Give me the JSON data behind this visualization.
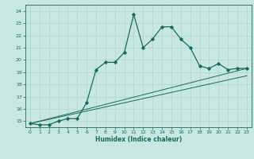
{
  "xlabel": "Humidex (Indice chaleur)",
  "ylabel": "",
  "xlim": [
    -0.5,
    23.5
  ],
  "ylim": [
    14.5,
    24.5
  ],
  "xticks": [
    0,
    1,
    2,
    3,
    4,
    5,
    6,
    7,
    8,
    9,
    10,
    11,
    12,
    13,
    14,
    15,
    16,
    17,
    18,
    19,
    20,
    21,
    22,
    23
  ],
  "yticks": [
    15,
    16,
    17,
    18,
    19,
    20,
    21,
    22,
    23,
    24
  ],
  "bg_color": "#c8e6e6",
  "grid_color": "#aad4d4",
  "line_color": "#1a6b5a",
  "main_x": [
    0,
    1,
    2,
    3,
    4,
    5,
    6,
    7,
    8,
    9,
    10,
    11,
    12,
    13,
    14,
    15,
    16,
    17,
    18,
    19,
    20,
    21,
    22,
    23
  ],
  "main_y": [
    14.8,
    14.7,
    14.7,
    15.0,
    15.2,
    15.2,
    16.5,
    19.2,
    19.8,
    19.8,
    20.6,
    23.7,
    21.0,
    21.7,
    22.7,
    22.7,
    21.7,
    21.0,
    19.5,
    19.3,
    19.7,
    19.2,
    19.3,
    19.3
  ],
  "ref_line1_x": [
    0,
    23
  ],
  "ref_line1_y": [
    14.8,
    19.3
  ],
  "ref_line2_x": [
    0,
    23
  ],
  "ref_line2_y": [
    14.8,
    18.7
  ]
}
